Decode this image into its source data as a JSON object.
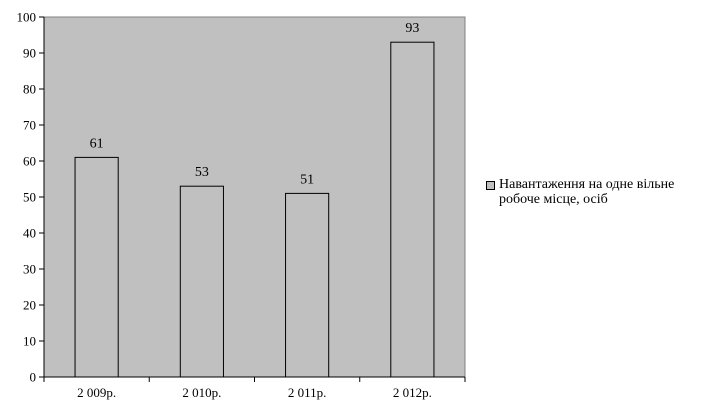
{
  "chart_data": {
    "type": "bar",
    "categories": [
      "2 009р.",
      "2 010р.",
      "2 011р.",
      "2 012р."
    ],
    "series": [
      {
        "name": "Навантаження на одне вільне робоче місце, осіб",
        "values": [
          61,
          53,
          51,
          93
        ]
      }
    ],
    "data_labels": [
      "61",
      "53",
      "51",
      "93"
    ],
    "ylim": [
      0,
      100
    ],
    "yticks": [
      0,
      10,
      20,
      30,
      40,
      50,
      60,
      70,
      80,
      90,
      100
    ],
    "ytick_labels": [
      "0",
      "10",
      "20",
      "30",
      "40",
      "50",
      "60",
      "70",
      "80",
      "90",
      "100"
    ],
    "grid": false,
    "legend_position": "right",
    "plot_background": "#c0c0c0",
    "bar_color": "#c0c0c0",
    "title": "",
    "xlabel": "",
    "ylabel": ""
  }
}
